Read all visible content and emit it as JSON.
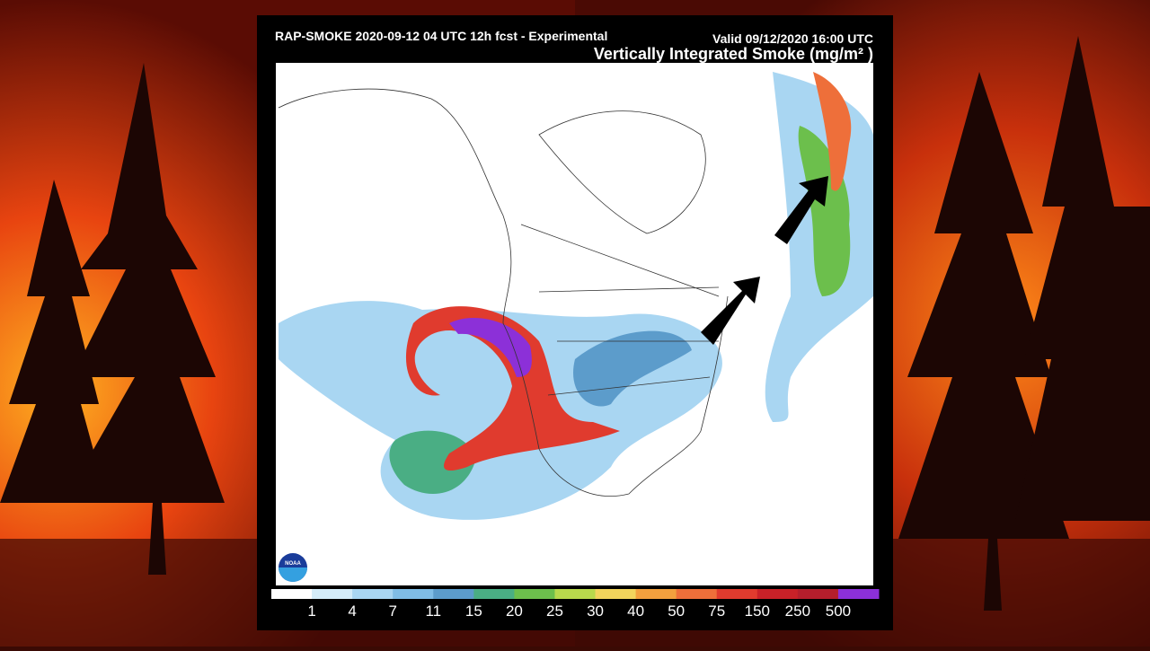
{
  "header": {
    "title": "RAP-SMOKE 2020-09-12 04 UTC 12h fcst - Experimental",
    "valid": "Valid 09/12/2020 16:00 UTC",
    "product": "Vertically Integrated Smoke (mg/m² )"
  },
  "logo": "NOAA",
  "legend": {
    "colors": [
      "#ffffff",
      "#d4ecf9",
      "#a9d6f2",
      "#80bde6",
      "#5c9ccb",
      "#4aae84",
      "#6cbf4c",
      "#b8d94c",
      "#f2d45c",
      "#f3a03e",
      "#ee6f3a",
      "#e03b2e",
      "#c92128",
      "#b51e2c",
      "#8c30d8"
    ],
    "labels": [
      "1",
      "4",
      "7",
      "11",
      "15",
      "20",
      "25",
      "30",
      "40",
      "50",
      "75",
      "150",
      "250",
      "500"
    ]
  }
}
